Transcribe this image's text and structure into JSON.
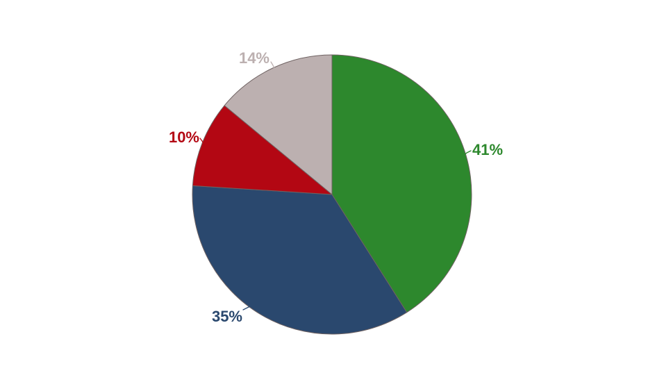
{
  "page": {
    "background_color": "#ffffff"
  },
  "chart_data": {
    "type": "pie",
    "title": "",
    "legend_position": "labeled-outside",
    "direction": "clockwise",
    "start_angle_deg": 0,
    "slice_border_color": "#6f6262",
    "total": 100,
    "slices": [
      {
        "name": "green-slice",
        "label": "41%",
        "value": 41,
        "color": "#2d882d"
      },
      {
        "name": "blue-slice",
        "label": "35%",
        "value": 35,
        "color": "#2a486e"
      },
      {
        "name": "red-slice",
        "label": "10%",
        "value": 10,
        "color": "#b30713"
      },
      {
        "name": "gray-slice",
        "label": "14%",
        "value": 14,
        "color": "#bcb0b0"
      }
    ]
  }
}
